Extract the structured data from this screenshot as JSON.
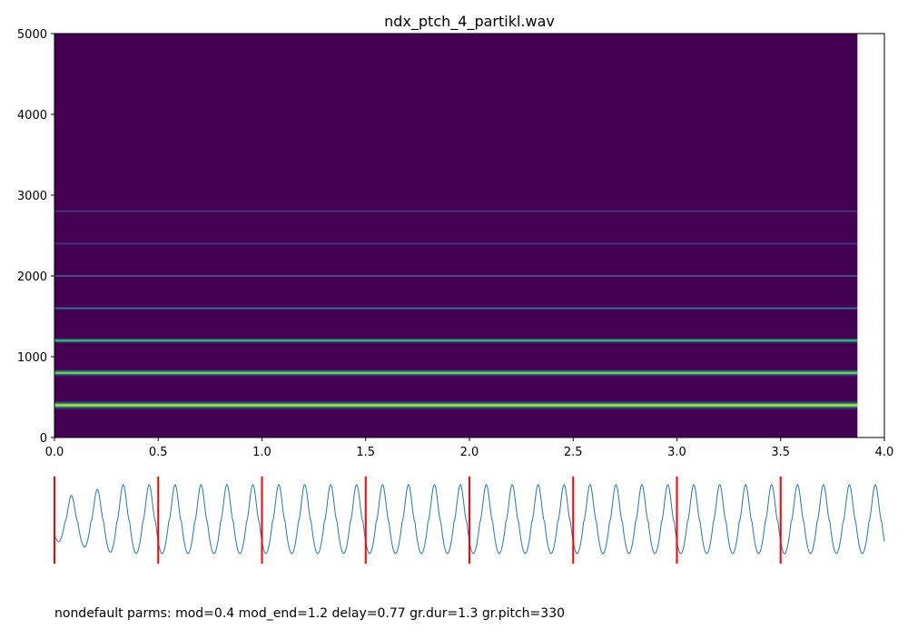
{
  "chart_data": [
    {
      "type": "heatmap",
      "title": "ndx_ptch_4_partikl.wav",
      "xlabel": "",
      "ylabel": "",
      "xlim": [
        0.0,
        4.0
      ],
      "ylim": [
        0,
        5000
      ],
      "x_ticks": [
        "0.0",
        "0.5",
        "1.0",
        "1.5",
        "2.0",
        "2.5",
        "3.0",
        "3.5",
        "4.0"
      ],
      "y_ticks": [
        "0",
        "1000",
        "2000",
        "3000",
        "4000",
        "5000"
      ],
      "data_end_time": 3.87,
      "colormap": "viridis",
      "background_color": "#440154",
      "partials": [
        {
          "freq": 400,
          "level": 1.0
        },
        {
          "freq": 800,
          "level": 0.78
        },
        {
          "freq": 1200,
          "level": 0.55
        },
        {
          "freq": 1600,
          "level": 0.42
        },
        {
          "freq": 2000,
          "level": 0.33
        },
        {
          "freq": 2400,
          "level": 0.24
        },
        {
          "freq": 2800,
          "level": 0.18
        }
      ]
    },
    {
      "type": "line",
      "title": "",
      "xlim": [
        0.0,
        4.0
      ],
      "line_color": "#1f77b4",
      "marker_color": "#ff0000",
      "wave_period": 0.125,
      "wave_start_phase_time": 0.05,
      "markers": [
        0.0,
        0.5,
        1.0,
        1.5,
        2.0,
        2.5,
        3.0,
        3.5
      ]
    }
  ],
  "footer": {
    "text": "nondefault parms: mod=0.4 mod_end=1.2 delay=0.77 gr.dur=1.3 gr.pitch=330"
  }
}
